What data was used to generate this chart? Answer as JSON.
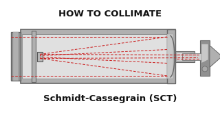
{
  "bg_color": "#f0f0f0",
  "page_bg": "#ffffff",
  "title_text": "HOW TO COLLIMATE",
  "subtitle_text": "Schmidt-Cassegrain (SCT)",
  "title_fontsize": 9.5,
  "subtitle_fontsize": 9.5,
  "title_weight": "bold",
  "subtitle_weight": "bold",
  "red_line_color": "#cc2222",
  "tube_gray_outer": "#909090",
  "tube_gray_mid": "#b0b0b0",
  "tube_gray_inner": "#d0d0d0",
  "tube_gray_light": "#e0e0e0"
}
